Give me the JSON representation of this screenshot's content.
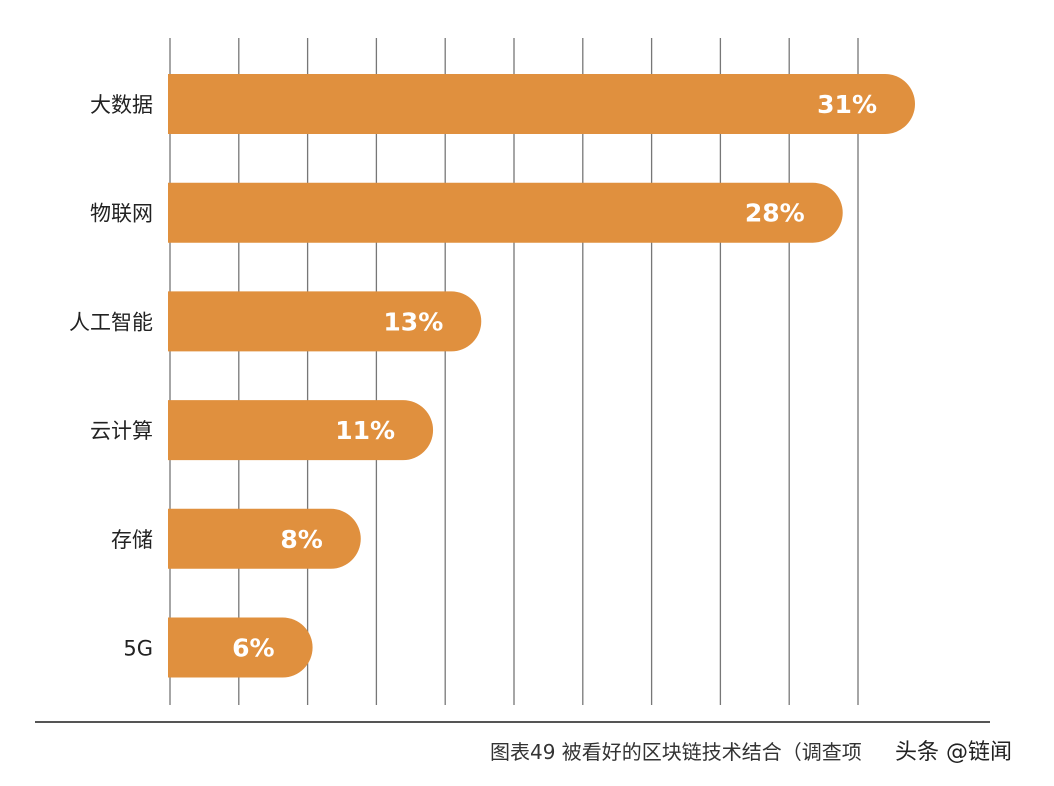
{
  "chart_data": {
    "type": "bar",
    "orientation": "horizontal",
    "categories": [
      "大数据",
      "物联网",
      "人工智能",
      "云计算",
      "存储",
      "5G"
    ],
    "values": [
      31,
      28,
      13,
      11,
      8,
      6
    ],
    "data_labels": [
      "31%",
      "28%",
      "13%",
      "11%",
      "8%",
      "6%"
    ],
    "unit": "%",
    "xlim": [
      0,
      31
    ],
    "grid": "vertical",
    "bar_color": "#e0903e",
    "label_color": "#ffffff",
    "caption": "图表49  被看好的区块链技术结合（调查项"
  },
  "watermark": "头条 @链闻"
}
